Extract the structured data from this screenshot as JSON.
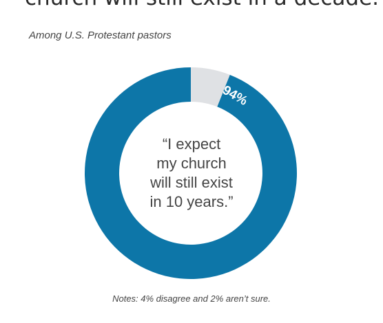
{
  "header": {
    "title": "church will still exist in a decade.",
    "subtitle": "Among U.S. Protestant pastors"
  },
  "colors": {
    "agree": "#0d76a8",
    "other": "#dfe1e4",
    "label": "#ffffff"
  },
  "chart_data": {
    "type": "pie",
    "title": "church will still exist in a decade.",
    "subtitle": "Among U.S. Protestant pastors",
    "center_text": [
      "“I expect",
      "my church",
      "will still exist",
      "in 10 years.”"
    ],
    "slices": [
      {
        "value": 94,
        "label": "94%",
        "color": "#0d76a8"
      },
      {
        "value": 6,
        "label": "",
        "color": "#dfe1e4"
      }
    ],
    "legend": "none",
    "notes": "Notes: 4% disagree and 2% aren’t sure."
  }
}
